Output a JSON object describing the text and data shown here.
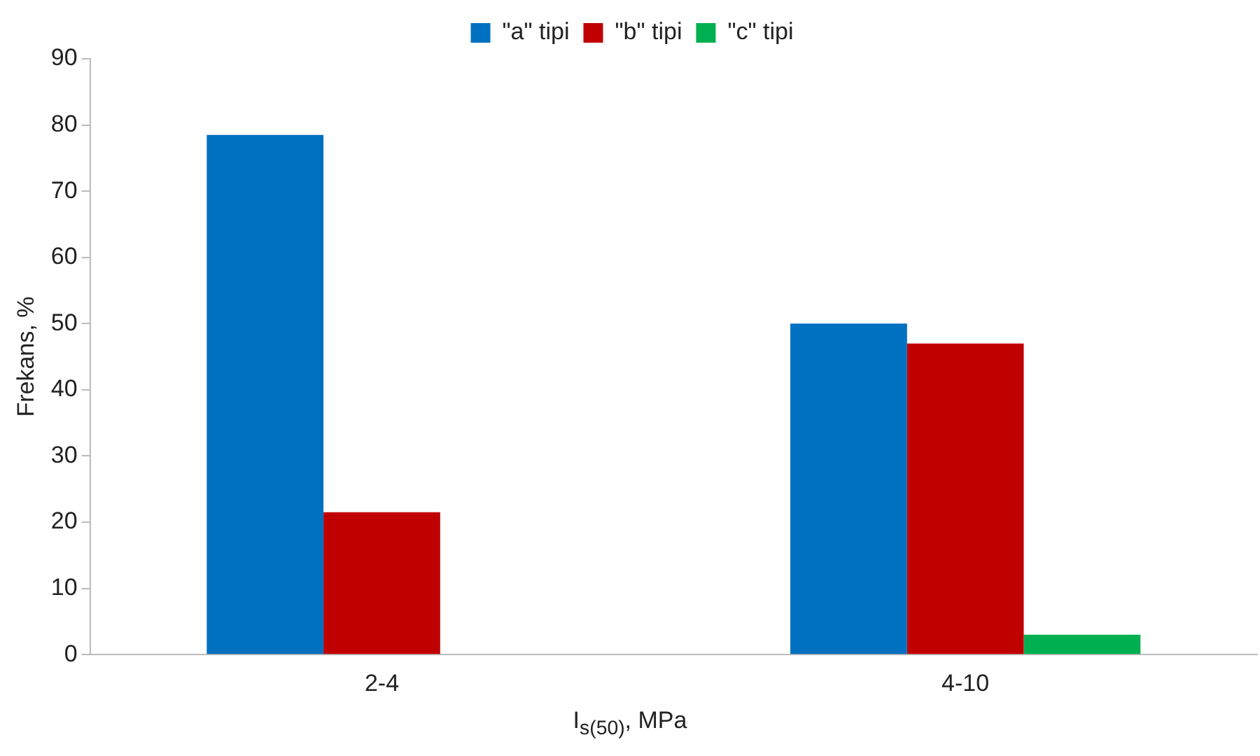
{
  "chart_data": {
    "type": "bar",
    "xlabel": "I$_{s(50)}$, MPa",
    "ylabel": "Frekans, %",
    "categories": [
      "2-4",
      "4-10"
    ],
    "series": [
      {
        "name": "\"a\" tipi",
        "color": "#0070c0",
        "values": [
          78.5,
          50
        ]
      },
      {
        "name": "\"b\" tipi",
        "color": "#c00000",
        "values": [
          21.5,
          47
        ]
      },
      {
        "name": "\"c\" tipi",
        "color": "#00b050",
        "values": [
          0,
          3
        ]
      }
    ],
    "ylim": [
      0,
      90
    ],
    "yticks": [
      0,
      10,
      20,
      30,
      40,
      50,
      60,
      70,
      80,
      90
    ],
    "grid": false,
    "legend": "top"
  }
}
